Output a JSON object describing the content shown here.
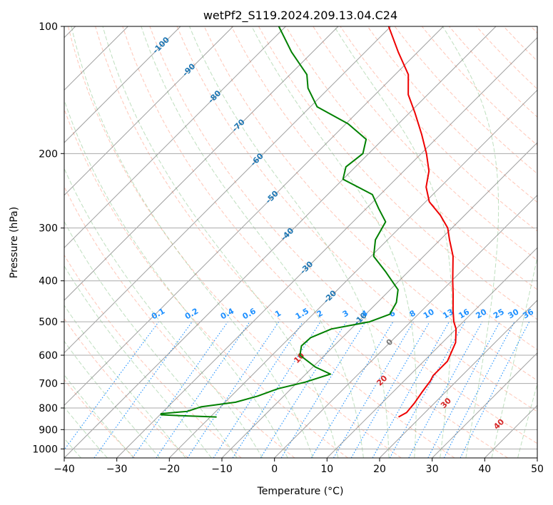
{
  "chart_data": {
    "type": "line",
    "title": "wetPf2_S119.2024.209.13.04.C24",
    "xlabel": "Temperature (°C)",
    "ylabel": "Pressure (hPa)",
    "xlim": [
      -40,
      50
    ],
    "ylim": [
      1050,
      100
    ],
    "y_scale": "log",
    "skew": true,
    "grid": true,
    "x_ticks": [
      -40,
      -30,
      -20,
      -10,
      0,
      10,
      20,
      30,
      40,
      50
    ],
    "y_ticks": [
      1000,
      900,
      800,
      700,
      600,
      500,
      400,
      300,
      200,
      100
    ],
    "isotherm_labels": [
      "-100",
      "-90",
      "-80",
      "-70",
      "-60",
      "-50",
      "-40",
      "-30",
      "-20",
      "-10",
      "0"
    ],
    "mixing_ratio_labels": [
      "0.1",
      "0.2",
      "0.4",
      "0.6",
      "1",
      "1.5",
      "2",
      "3",
      "4",
      "6",
      "8",
      "10",
      "13",
      "16",
      "20",
      "25",
      "30",
      "36"
    ],
    "moist_adiabat_labels": [
      "10",
      "20",
      "30",
      "40"
    ],
    "colors": {
      "temperature": "#ee0000",
      "dewpoint": "#008000",
      "isotherm_label": "#1f77b4",
      "mixing_ratio": "#1e90ff",
      "moist_adiabat_label": "#d62728",
      "dry_adiabat": "#ff8060",
      "moist_adiabat": "#7fbf7f",
      "grid": "#aaaaaa"
    },
    "series": [
      {
        "name": "Temperature",
        "points": [
          {
            "p": 840,
            "t": 15.8
          },
          {
            "p": 820,
            "t": 16.5
          },
          {
            "p": 780,
            "t": 16.2
          },
          {
            "p": 730,
            "t": 15.5
          },
          {
            "p": 690,
            "t": 15.0
          },
          {
            "p": 670,
            "t": 14.5
          },
          {
            "p": 620,
            "t": 14.5
          },
          {
            "p": 560,
            "t": 12.5
          },
          {
            "p": 520,
            "t": 10.0
          },
          {
            "p": 500,
            "t": 8.2
          },
          {
            "p": 470,
            "t": 5.9
          },
          {
            "p": 430,
            "t": 2.8
          },
          {
            "p": 400,
            "t": 0.2
          },
          {
            "p": 350,
            "t": -4.4
          },
          {
            "p": 320,
            "t": -8.2
          },
          {
            "p": 300,
            "t": -10.8
          },
          {
            "p": 280,
            "t": -14.6
          },
          {
            "p": 260,
            "t": -19.3
          },
          {
            "p": 240,
            "t": -22.7
          },
          {
            "p": 220,
            "t": -25.2
          },
          {
            "p": 200,
            "t": -29.0
          },
          {
            "p": 180,
            "t": -33.6
          },
          {
            "p": 160,
            "t": -39.0
          },
          {
            "p": 145,
            "t": -43.7
          },
          {
            "p": 130,
            "t": -47.5
          },
          {
            "p": 115,
            "t": -53.7
          },
          {
            "p": 100,
            "t": -60.4
          }
        ]
      },
      {
        "name": "Dewpoint",
        "points": [
          {
            "p": 840,
            "t": -18.8
          },
          {
            "p": 835,
            "t": -25.0
          },
          {
            "p": 830,
            "t": -29.8
          },
          {
            "p": 825,
            "t": -30.0
          },
          {
            "p": 815,
            "t": -25.5
          },
          {
            "p": 795,
            "t": -23.7
          },
          {
            "p": 775,
            "t": -18.0
          },
          {
            "p": 750,
            "t": -15.0
          },
          {
            "p": 720,
            "t": -12.5
          },
          {
            "p": 695,
            "t": -8.6
          },
          {
            "p": 665,
            "t": -5.3
          },
          {
            "p": 640,
            "t": -9.5
          },
          {
            "p": 600,
            "t": -14.7
          },
          {
            "p": 570,
            "t": -16.2
          },
          {
            "p": 545,
            "t": -16.0
          },
          {
            "p": 520,
            "t": -13.7
          },
          {
            "p": 500,
            "t": -7.8
          },
          {
            "p": 480,
            "t": -5.4
          },
          {
            "p": 450,
            "t": -6.4
          },
          {
            "p": 420,
            "t": -8.5
          },
          {
            "p": 380,
            "t": -14.4
          },
          {
            "p": 350,
            "t": -19.5
          },
          {
            "p": 320,
            "t": -22.3
          },
          {
            "p": 290,
            "t": -23.8
          },
          {
            "p": 270,
            "t": -27.6
          },
          {
            "p": 250,
            "t": -31.5
          },
          {
            "p": 230,
            "t": -40.0
          },
          {
            "p": 215,
            "t": -41.8
          },
          {
            "p": 200,
            "t": -41.1
          },
          {
            "p": 185,
            "t": -43.2
          },
          {
            "p": 170,
            "t": -49.6
          },
          {
            "p": 155,
            "t": -58.7
          },
          {
            "p": 140,
            "t": -64.0
          },
          {
            "p": 130,
            "t": -66.8
          },
          {
            "p": 115,
            "t": -74.0
          },
          {
            "p": 100,
            "t": -81.3
          }
        ]
      }
    ]
  }
}
